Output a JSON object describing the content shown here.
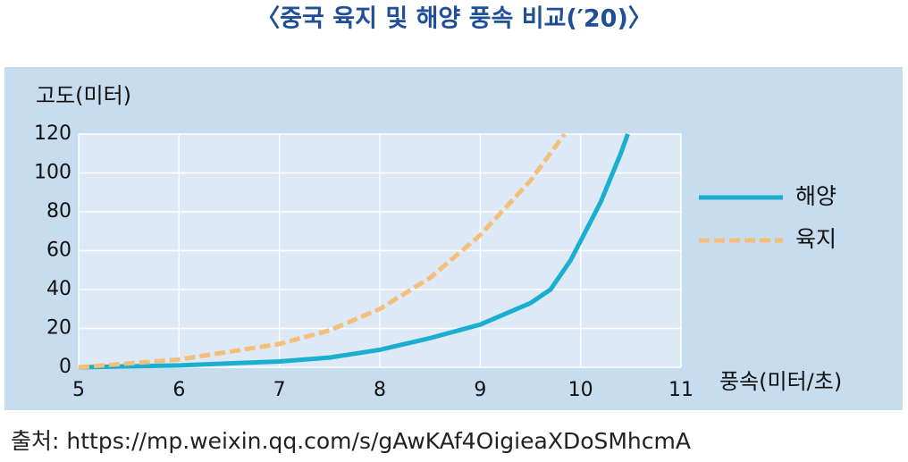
{
  "chart_data": {
    "type": "line",
    "title": "〈중국 육지 및 해양 풍속 비교(′20)〉",
    "y_label": "고도(미터)",
    "x_label": "풍속(미터/초)",
    "source": "출처: https://mp.weixin.qq.com/s/gAwKAf4OigieaXDoSMhcmA",
    "xlim": [
      5,
      11
    ],
    "xticks": [
      5,
      6,
      7,
      8,
      9,
      10,
      11
    ],
    "ylim": [
      0,
      120
    ],
    "yticks": [
      0,
      20,
      40,
      60,
      80,
      100,
      120
    ],
    "grid": true,
    "legend": "right",
    "series": [
      {
        "name": "해양",
        "color": "#1aaed0",
        "dash": false,
        "x": [
          5,
          6,
          7,
          7.5,
          8,
          8.5,
          9,
          9.5,
          9.7,
          9.9,
          10,
          10.2,
          10.4,
          10.47
        ],
        "values": [
          0,
          1,
          3,
          5,
          9,
          15,
          22,
          33,
          40,
          55,
          65,
          85,
          110,
          120
        ]
      },
      {
        "name": "육지",
        "color": "#f4bf7a",
        "dash": true,
        "x": [
          5,
          6,
          7,
          7.5,
          8,
          8.5,
          9,
          9.5,
          9.84
        ],
        "values": [
          0,
          4,
          12,
          19,
          30,
          46,
          68,
          96,
          120
        ]
      }
    ]
  }
}
